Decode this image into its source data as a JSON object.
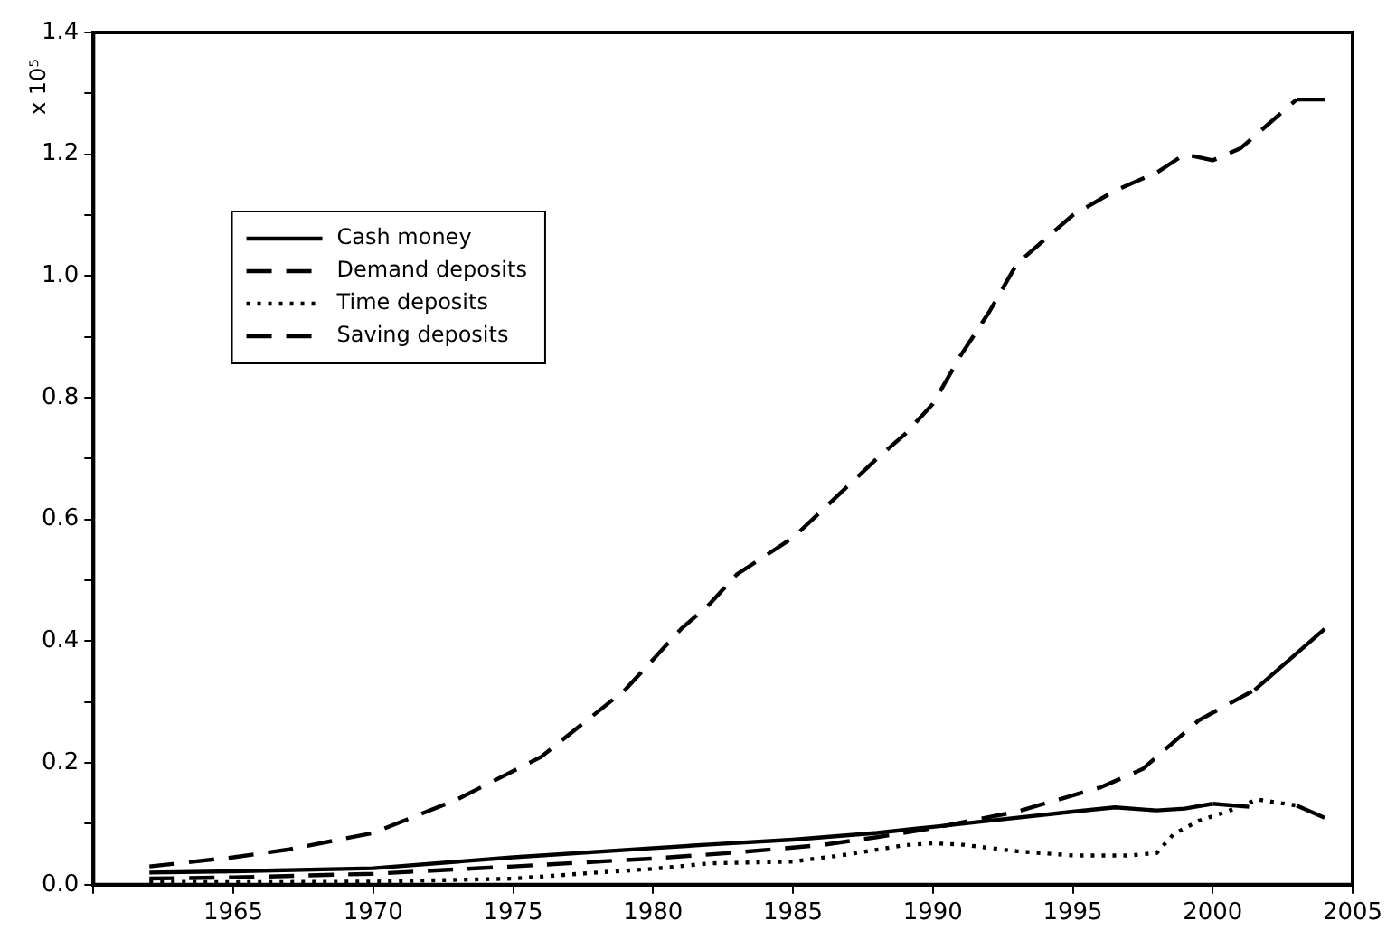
{
  "chart_data": {
    "type": "line",
    "ylabel": "x 10⁵",
    "xlim": [
      1960,
      2005
    ],
    "xticks": [
      {
        "value": 1960,
        "label": null
      },
      1965,
      1970,
      1975,
      1980,
      1985,
      1990,
      1995,
      2000,
      2005
    ],
    "ylim": [
      0,
      1.4
    ],
    "yticks": [
      {
        "value": 0,
        "label": "0.0"
      },
      {
        "value": 0.1,
        "label": null
      },
      {
        "value": 0.2,
        "label": "0.2"
      },
      {
        "value": 0.3,
        "label": null
      },
      {
        "value": 0.4,
        "label": "0.4"
      },
      {
        "value": 0.5,
        "label": null
      },
      {
        "value": 0.6,
        "label": "0.6"
      },
      {
        "value": 0.7,
        "label": null
      },
      {
        "value": 0.8,
        "label": "0.8"
      },
      {
        "value": 0.9,
        "label": null
      },
      {
        "value": 1.0,
        "label": "1.0"
      },
      {
        "value": 1.1,
        "label": null
      },
      {
        "value": 1.2,
        "label": "1.2"
      },
      {
        "value": 1.3,
        "label": null
      },
      {
        "value": 1.4,
        "label": "1.4"
      }
    ],
    "grid": false,
    "legend": "top left",
    "marker": "none",
    "series": [
      {
        "name": "Cash money",
        "color": "#000000",
        "line_style": "solid",
        "x": [
          1962,
          1965,
          1970,
          1975,
          1980,
          1982,
          1985,
          1988,
          1990,
          1992,
          1995,
          1996.5,
          1998,
          1999,
          2000,
          2001.3
        ],
        "values": [
          0.02,
          0.022,
          0.027,
          0.045,
          0.06,
          0.066,
          0.074,
          0.085,
          0.095,
          0.105,
          0.12,
          0.127,
          0.122,
          0.125,
          0.133,
          0.128
        ]
      },
      {
        "name": "Demand deposits",
        "color": "#000000",
        "line_style": "dashed",
        "x": [
          1962,
          1965,
          1970,
          1975,
          1980,
          1983,
          1986,
          1988,
          1990,
          1993,
          1996,
          1997.5,
          1999.5,
          2001.5,
          2004
        ],
        "values": [
          0.01,
          0.012,
          0.018,
          0.03,
          0.043,
          0.053,
          0.065,
          0.078,
          0.093,
          0.12,
          0.16,
          0.19,
          0.27,
          0.32,
          0.42
        ]
      },
      {
        "name": "Time deposits",
        "color": "#000000",
        "line_style": "dotted",
        "x": [
          1962,
          1965,
          1970,
          1975,
          1978,
          1980,
          1982,
          1985,
          1987,
          1989,
          1990,
          1991,
          1993,
          1995,
          1997,
          1998,
          1998.6,
          1999.5,
          2000.5,
          2001.6,
          2003,
          2004
        ],
        "values": [
          0.005,
          0.004,
          0.005,
          0.01,
          0.02,
          0.026,
          0.035,
          0.038,
          0.05,
          0.065,
          0.068,
          0.066,
          0.055,
          0.048,
          0.048,
          0.052,
          0.083,
          0.105,
          0.12,
          0.14,
          0.13,
          0.11
        ]
      },
      {
        "name": "Saving deposits",
        "color": "#000000",
        "line_style": "dashed",
        "x": [
          1962,
          1965,
          1967,
          1970,
          1973,
          1976,
          1979,
          1981,
          1982,
          1983,
          1985,
          1988,
          1989,
          1990,
          1991,
          1992,
          1993,
          1995,
          1996.5,
          1998,
          1999,
          2000,
          2001,
          2002,
          2003,
          2004
        ],
        "values": [
          0.03,
          0.045,
          0.058,
          0.085,
          0.14,
          0.21,
          0.32,
          0.42,
          0.46,
          0.51,
          0.57,
          0.7,
          0.74,
          0.79,
          0.87,
          0.94,
          1.02,
          1.1,
          1.14,
          1.17,
          1.2,
          1.19,
          1.21,
          1.25,
          1.29,
          1.29
        ]
      }
    ]
  }
}
